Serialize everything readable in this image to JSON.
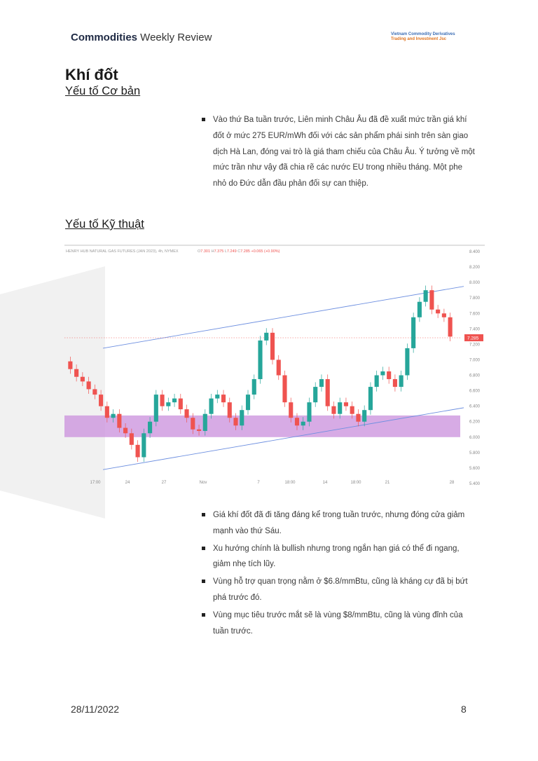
{
  "header": {
    "brand_bold": "Commodities",
    "brand_rest": " Weekly Review",
    "logo_line1": "Vietnam Commodity Derivatives",
    "logo_line2": "Trading and Investment Jsc"
  },
  "title": "Khí đốt",
  "section1": "Yếu tố Cơ bản",
  "fundamental": "Vào thứ Ba tuần trước, Liên minh Châu Âu đã đề xuất mức trần giá khí đốt ở mức 275 EUR/mWh đối với các sản phẩm phái sinh trên sàn giao dịch Hà Lan, đóng vai trò là giá tham chiếu của Châu Âu. Ý tưởng về một mức trần như vậy đã chia rẽ các nước EU trong nhiều tháng. Một phe nhỏ do Đức dẫn đầu phản đối sự can thiệp.",
  "section2": "Yếu tố Kỹ thuật",
  "technical": [
    "Giá khí đốt đã đi tăng đáng kể trong tuần trước, nhưng đóng cửa giảm mạnh vào thứ Sáu.",
    "Xu hướng chính là bullish nhưng trong ngắn hạn giá có thể đi ngang, giảm nhẹ tích lũy.",
    "Vùng hỗ trợ quan trọng nằm ở $6.8/mmBtu, cũng là kháng cự đã bị bứt phá trước đó.",
    "Vùng mục tiêu trước mắt sẽ là vùng $8/mmBtu, cũng là vùng đỉnh của tuần trước."
  ],
  "footer": {
    "date": "28/11/2022",
    "page": "8"
  },
  "chart_data": {
    "type": "candlestick",
    "title": "HENRY HUB NATURAL GAS FUTURES (JAN 2023), 4h, NYMEX",
    "ohlc_text": {
      "o": "7.301",
      "h": "7.375",
      "l": "7.249",
      "c": "7.285",
      "chg": "+0.065 (+0.90%)"
    },
    "last_price": "7.285",
    "ylim": [
      5.4,
      8.4
    ],
    "yticks": [
      "8.400",
      "8.200",
      "8.000",
      "7.800",
      "7.600",
      "7.400",
      "7.200",
      "7.000",
      "6.800",
      "6.600",
      "6.400",
      "6.200",
      "6.000",
      "5.800",
      "5.600",
      "5.400"
    ],
    "xticks": [
      "17:00",
      "24",
      "27",
      "Nov",
      "7",
      "18:00",
      "14",
      "18:00",
      "21",
      "28"
    ],
    "closes": [
      6.88,
      6.78,
      6.72,
      6.62,
      6.55,
      6.4,
      6.25,
      6.3,
      6.12,
      6.05,
      5.9,
      5.74,
      6.05,
      6.2,
      6.55,
      6.4,
      6.45,
      6.5,
      6.36,
      6.25,
      6.1,
      6.08,
      6.3,
      6.5,
      6.55,
      6.45,
      6.25,
      6.15,
      6.35,
      6.55,
      6.75,
      7.25,
      7.35,
      7.0,
      6.8,
      6.45,
      6.25,
      6.15,
      6.2,
      6.45,
      6.65,
      6.75,
      6.4,
      6.3,
      6.45,
      6.4,
      6.3,
      6.2,
      6.35,
      6.65,
      6.8,
      6.85,
      6.75,
      6.65,
      6.8,
      7.15,
      7.55,
      7.75,
      7.9,
      7.65,
      7.6,
      7.55,
      7.3
    ],
    "channel_upper": [
      [
        7.15,
        7.95
      ]
    ],
    "channel_lower": [
      [
        5.58,
        6.38
      ]
    ],
    "support_zone": [
      6.0,
      6.28
    ],
    "colors": {
      "up": "#26a69a",
      "down": "#ef5350",
      "zone": "#c98fdc",
      "channel": "#6d8fe0",
      "price_label": "#ef5350"
    }
  }
}
